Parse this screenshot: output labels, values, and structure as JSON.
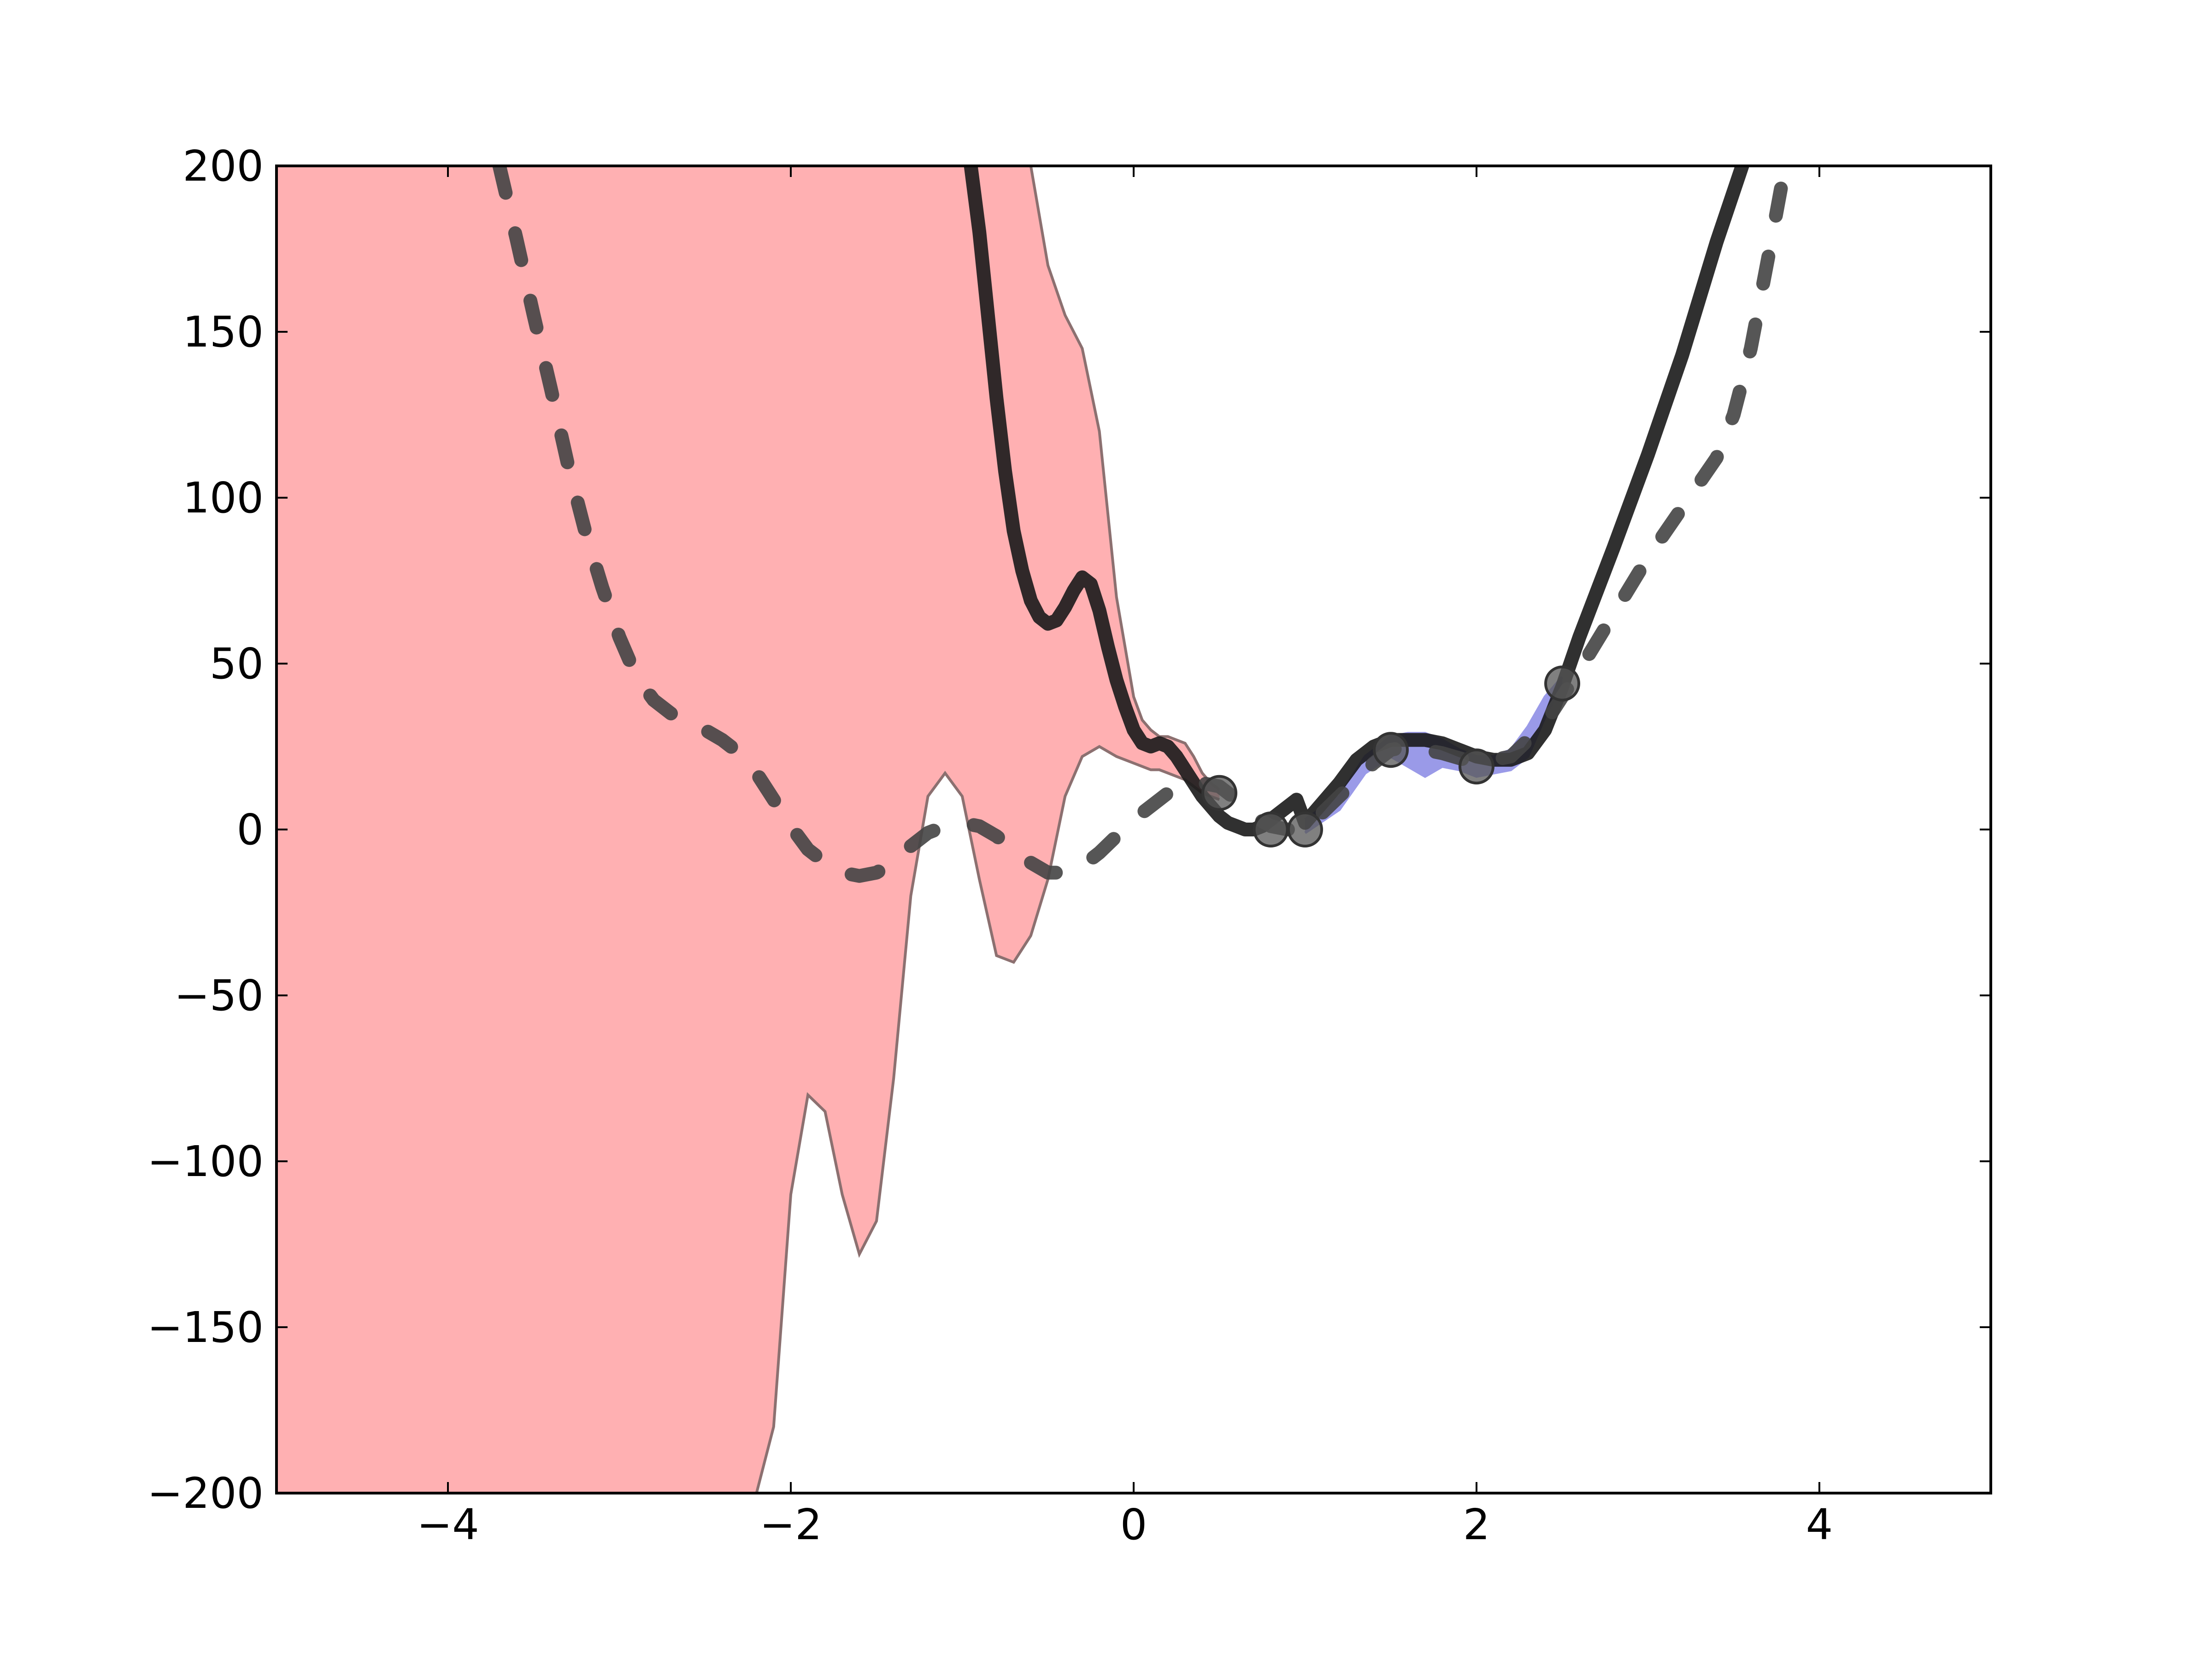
{
  "chart_data": {
    "type": "line",
    "title": "",
    "xlabel": "",
    "ylabel": "",
    "xlim": [
      -5,
      5
    ],
    "ylim": [
      -200,
      200
    ],
    "grid": false,
    "legend": "none",
    "x_ticks": [
      -4,
      -2,
      0,
      2,
      4
    ],
    "y_ticks": [
      -200,
      -150,
      -100,
      -50,
      0,
      50,
      100,
      150,
      200
    ],
    "x_tick_labels": [
      "−4",
      "−2",
      "0",
      "2",
      "4"
    ],
    "y_tick_labels": [
      "−200",
      "−150",
      "−100",
      "−50",
      "0",
      "50",
      "100",
      "150",
      "200"
    ],
    "colors": {
      "red_band_fill": "#ffb0b2",
      "red_band_edge": "#8c7070",
      "blue_band_fill": "#9a9ae8",
      "mean_line": "#1a1a1a",
      "dashed_line": "#444444",
      "points": "#555555"
    },
    "series": [
      {
        "kind": "band",
        "color": "#ffb0b2",
        "x": [
          -5.0,
          -4.0,
          -3.0,
          -2.5,
          -2.2,
          -2.1,
          -2.0,
          -1.9,
          -1.8,
          -1.7,
          -1.6,
          -1.5,
          -1.4,
          -1.3,
          -1.2,
          -1.1,
          -1.0,
          -0.9,
          -0.8,
          -0.7,
          -0.6,
          -0.5,
          -0.4,
          -0.3,
          -0.2,
          -0.1,
          0.0,
          0.05,
          0.1,
          0.15,
          0.2,
          0.3,
          0.35,
          0.4,
          0.45,
          0.5
        ],
        "upper": [
          200,
          200,
          200,
          200,
          200,
          200,
          200,
          200,
          200,
          200,
          200,
          200,
          200,
          200,
          200,
          200,
          200,
          200,
          200,
          200,
          200,
          170,
          155,
          145,
          120,
          70,
          40,
          33,
          30,
          28,
          28,
          26,
          22,
          17,
          14,
          12
        ],
        "lower": [
          -200,
          -200,
          -200,
          -200,
          -200,
          -180,
          -110,
          -80,
          -85,
          -110,
          -128,
          -118,
          -75,
          -20,
          10,
          17,
          10,
          -15,
          -38,
          -40,
          -32,
          -15,
          10,
          22,
          25,
          22,
          20,
          19,
          18,
          18,
          17,
          15,
          13,
          11,
          10,
          9
        ]
      },
      {
        "kind": "band",
        "color": "#9a9ae8",
        "x": [
          1.0,
          1.2,
          1.35,
          1.5,
          1.6,
          1.7,
          1.8,
          1.9,
          2.0,
          2.1,
          2.2,
          2.3,
          2.4,
          2.5
        ],
        "upper": [
          3,
          10,
          22,
          28,
          29,
          29,
          27,
          24,
          22,
          22,
          24,
          31,
          40,
          46
        ],
        "lower": [
          -1,
          6,
          17,
          22,
          19,
          16,
          19,
          18,
          16,
          17,
          18,
          22,
          34,
          44
        ]
      },
      {
        "kind": "line",
        "color": "#1a1a1a",
        "x": [
          -0.95,
          -0.9,
          -0.85,
          -0.8,
          -0.75,
          -0.7,
          -0.65,
          -0.6,
          -0.55,
          -0.5,
          -0.45,
          -0.4,
          -0.35,
          -0.3,
          -0.25,
          -0.2,
          -0.15,
          -0.1,
          -0.05,
          0.0,
          0.05,
          0.1,
          0.15,
          0.2,
          0.25,
          0.3,
          0.35,
          0.4,
          0.45,
          0.5,
          0.55,
          0.6,
          0.65,
          0.7,
          0.75,
          0.8,
          0.85,
          0.9,
          0.95,
          1.0,
          1.1,
          1.2,
          1.3,
          1.4,
          1.5,
          1.6,
          1.7,
          1.8,
          1.9,
          2.0,
          2.1,
          2.2,
          2.3,
          2.4,
          2.5,
          2.6,
          2.8,
          3.0,
          3.2,
          3.4,
          3.55
        ],
        "y": [
          200,
          180,
          155,
          130,
          108,
          90,
          78,
          69,
          64,
          62,
          63,
          67,
          72,
          76,
          74,
          66,
          55,
          45,
          37,
          30,
          26,
          25,
          26,
          25,
          22,
          18,
          14,
          10,
          7,
          4,
          2,
          1,
          0,
          0,
          1,
          3,
          5,
          7,
          9,
          2,
          8,
          14,
          21,
          25,
          27,
          27,
          27,
          26,
          24,
          22,
          21,
          21,
          23,
          30,
          43,
          58,
          85,
          113,
          143,
          177,
          200
        ]
      },
      {
        "kind": "dashed",
        "color": "#444444",
        "x": [
          -3.7,
          -3.6,
          -3.5,
          -3.4,
          -3.3,
          -3.2,
          -3.1,
          -3.0,
          -2.9,
          -2.8,
          -2.7,
          -2.6,
          -2.5,
          -2.4,
          -2.3,
          -2.2,
          -2.1,
          -2.0,
          -1.9,
          -1.8,
          -1.7,
          -1.6,
          -1.5,
          -1.4,
          -1.3,
          -1.2,
          -1.1,
          -1.0,
          -0.9,
          -0.8,
          -0.7,
          -0.6,
          -0.5,
          -0.4,
          -0.3,
          -0.2,
          -0.1,
          0.0,
          0.1,
          0.2,
          0.3,
          0.4,
          0.5,
          0.6,
          0.7,
          0.8,
          0.9,
          1.0,
          1.2,
          1.4,
          1.5,
          1.6,
          1.8,
          2.0,
          2.2,
          2.4,
          2.6,
          2.8,
          3.0,
          3.2,
          3.4,
          3.5,
          3.6,
          3.7,
          3.8
        ],
        "y": [
          200,
          178,
          155,
          133,
          110,
          90,
          73,
          58,
          46,
          39,
          35,
          32,
          30,
          27,
          23,
          17,
          9,
          1,
          -6,
          -10,
          -13,
          -14,
          -13,
          -10,
          -5,
          -1,
          1,
          2,
          1,
          -2,
          -6,
          -10,
          -13,
          -13,
          -11,
          -7,
          -2,
          3,
          7,
          11,
          13,
          14,
          13,
          9,
          4,
          1,
          0,
          0,
          10,
          20,
          24,
          25,
          23,
          20,
          22,
          32,
          48,
          65,
          82,
          97,
          112,
          125,
          145,
          172,
          200
        ]
      },
      {
        "kind": "scatter",
        "color": "#555555",
        "x": [
          0.5,
          0.8,
          1.0,
          1.5,
          2.0,
          2.5
        ],
        "y": [
          11,
          0,
          0,
          24,
          19,
          44
        ]
      }
    ]
  }
}
